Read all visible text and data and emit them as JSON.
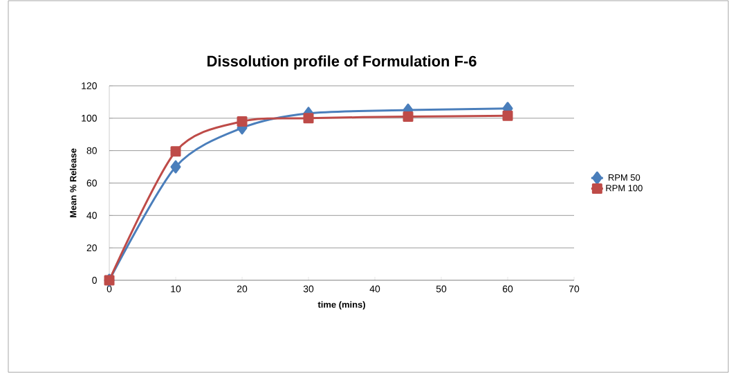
{
  "chart_data": {
    "type": "line",
    "title": "Dissolution profile of Formulation F-6",
    "xlabel": "time (mins)",
    "ylabel": "Mean % Release",
    "x": [
      0,
      10,
      20,
      30,
      45,
      60
    ],
    "series": [
      {
        "name": "RPM 50",
        "color": "#4a7ebb",
        "marker": "diamond",
        "values": [
          0,
          70,
          94,
          103,
          105,
          106
        ]
      },
      {
        "name": "RPM 100",
        "color": "#be4b48",
        "marker": "square",
        "values": [
          0,
          79.5,
          98,
          100,
          101,
          101.5
        ]
      }
    ],
    "xlim": [
      0,
      70
    ],
    "ylim": [
      0,
      120
    ],
    "xticks": [
      0,
      10,
      20,
      30,
      40,
      50,
      60,
      70
    ],
    "yticks": [
      0,
      20,
      40,
      60,
      80,
      100,
      120
    ],
    "grid": "y",
    "legend": "right",
    "line_style": "solid"
  }
}
